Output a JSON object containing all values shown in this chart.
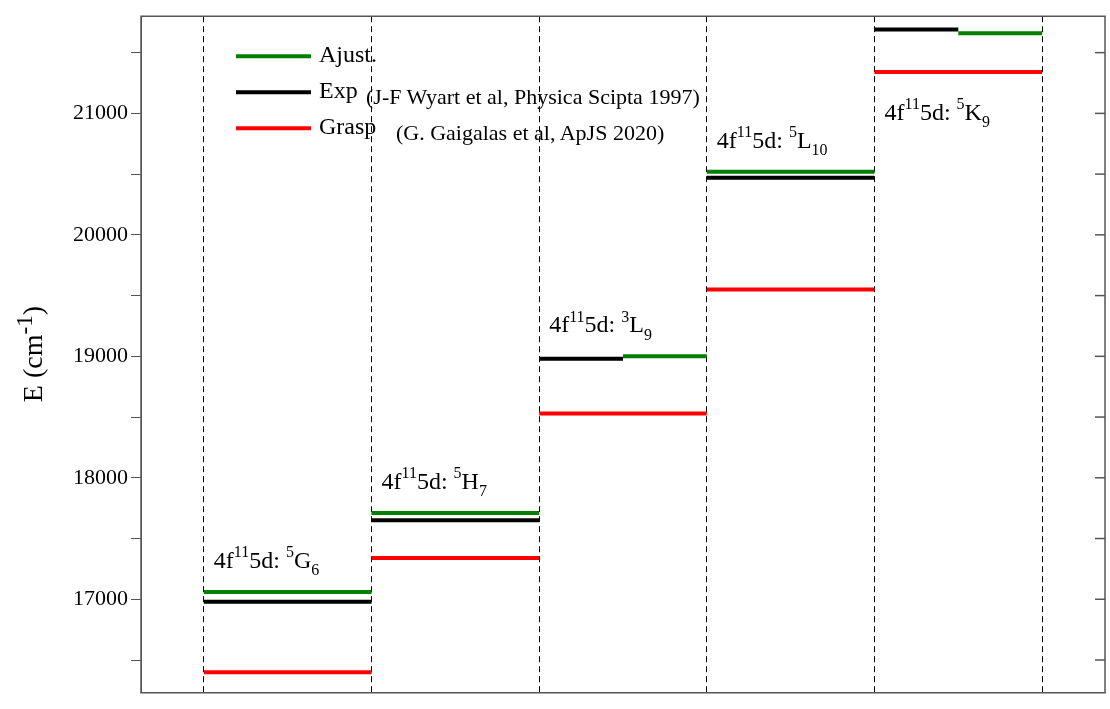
{
  "chart_data": {
    "type": "line",
    "ylabel": "E (cm$^{-1}$)",
    "categories": [
      null,
      null,
      null,
      null,
      null,
      null,
      null,
      null,
      null,
      null,
      null,
      null,
      null,
      null,
      null,
      null,
      null,
      null,
      null,
      null,
      null,
      null,
      null
    ],
    "ylim": [
      16230,
      21800
    ],
    "yticks": [
      {
        "value": 16500,
        "label": null
      },
      17000,
      {
        "value": 17500,
        "label": null
      },
      18000,
      {
        "value": 18500,
        "label": null
      },
      19000,
      {
        "value": 19500,
        "label": null
      },
      20000,
      {
        "value": 20500,
        "label": null
      },
      21000,
      {
        "value": 21500,
        "label": null
      }
    ],
    "grid": "x",
    "legend": "top left",
    "marker": "none",
    "line_style": "solid",
    "series": [
      {
        "name": "Ajust.",
        "color": "#008000",
        "values": [
          null,
          17060,
          17060,
          17060,
          17060,
          17060,
          null,
          null,
          null,
          null,
          null,
          null,
          null,
          null,
          null,
          null,
          null,
          null,
          null,
          null,
          null,
          null,
          null
        ]
      },
      {
        "name": "Exp",
        "color": "#000000",
        "values": [
          null,
          16980,
          16980,
          16980,
          16980,
          16980,
          null,
          null,
          null,
          null,
          null,
          null,
          null,
          null,
          null,
          null,
          null,
          null,
          null,
          null,
          null,
          null,
          null
        ]
      },
      {
        "name": "Grasp",
        "color": "#ff0000",
        "values": [
          null,
          16400,
          16400,
          16400,
          16400,
          16400,
          null,
          null,
          null,
          null,
          null,
          null,
          null,
          null,
          null,
          null,
          null,
          null,
          null,
          null,
          null,
          null,
          null
        ]
      },
      {
        "color": "#008000",
        "values": [
          null,
          null,
          null,
          null,
          null,
          17710,
          17710,
          17710,
          17710,
          17710,
          null,
          null,
          null,
          null,
          null,
          null,
          null,
          null,
          null,
          null,
          null,
          null,
          null
        ]
      },
      {
        "color": "#000000",
        "values": [
          null,
          null,
          null,
          null,
          null,
          17650,
          17650,
          17650,
          17650,
          17650,
          null,
          null,
          null,
          null,
          null,
          null,
          null,
          null,
          null,
          null,
          null,
          null,
          null
        ]
      },
      {
        "color": "#ff0000",
        "values": [
          null,
          null,
          null,
          null,
          null,
          17340,
          17340,
          17340,
          17340,
          17340,
          null,
          null,
          null,
          null,
          null,
          null,
          null,
          null,
          null,
          null,
          null,
          null,
          null
        ]
      },
      {
        "color": "#008000",
        "values": [
          null,
          null,
          null,
          null,
          null,
          null,
          null,
          null,
          null,
          null,
          null,
          19000,
          19000,
          19000,
          null,
          null,
          null,
          null,
          null,
          null,
          null,
          null,
          null
        ]
      },
      {
        "color": "#000000",
        "values": [
          null,
          null,
          null,
          null,
          null,
          null,
          null,
          null,
          null,
          18980,
          18980,
          18980,
          null,
          null,
          null,
          null,
          null,
          null,
          null,
          null,
          null,
          null,
          null
        ]
      },
      {
        "color": "#ff0000",
        "values": [
          null,
          null,
          null,
          null,
          null,
          null,
          null,
          null,
          null,
          18530,
          18530,
          18530,
          18530,
          18530,
          null,
          null,
          null,
          null,
          null,
          null,
          null,
          null,
          null
        ]
      },
      {
        "color": "#008000",
        "values": [
          null,
          null,
          null,
          null,
          null,
          null,
          null,
          null,
          null,
          null,
          null,
          null,
          null,
          20520,
          20520,
          20520,
          20520,
          20520,
          null,
          null,
          null,
          null,
          null
        ]
      },
      {
        "color": "#000000",
        "values": [
          null,
          null,
          null,
          null,
          null,
          null,
          null,
          null,
          null,
          null,
          null,
          null,
          null,
          20470,
          20470,
          20470,
          20470,
          20470,
          null,
          null,
          null,
          null,
          null
        ]
      },
      {
        "color": "#ff0000",
        "values": [
          null,
          null,
          null,
          null,
          null,
          null,
          null,
          null,
          null,
          null,
          null,
          null,
          null,
          19550,
          19550,
          19550,
          19550,
          19550,
          null,
          null,
          null,
          null,
          null
        ]
      },
      {
        "color": "#008000",
        "values": [
          null,
          null,
          null,
          null,
          null,
          null,
          null,
          null,
          null,
          null,
          null,
          null,
          null,
          null,
          null,
          null,
          null,
          null,
          null,
          21660,
          21660,
          21660,
          null
        ]
      },
      {
        "color": "#000000",
        "values": [
          null,
          null,
          null,
          null,
          null,
          null,
          null,
          null,
          null,
          null,
          null,
          null,
          null,
          null,
          null,
          null,
          null,
          21690,
          21690,
          21690,
          null,
          null,
          null
        ]
      },
      {
        "color": "#ff0000",
        "values": [
          null,
          null,
          null,
          null,
          null,
          null,
          null,
          null,
          null,
          null,
          null,
          null,
          null,
          null,
          null,
          null,
          null,
          21340,
          21340,
          21340,
          21340,
          21340,
          null
        ]
      }
    ],
    "annotations": [
      "4f$^{11}$5d: $^{5}$G$_{6}$",
      "4f$^{11}$5d: $^{5}$H$_{7}$",
      "4f$^{11}$5d: $^{3}$L$_{9}$",
      "4f$^{11}$5d: $^{5}$L$_{10}$",
      "4f$^{11}$5d: $^{5}$K$_{9}$",
      "(J-F Wyart et al, Physica Scipta 1997)",
      "(G. Gaigalas et al, ApJS 2020)"
    ]
  }
}
